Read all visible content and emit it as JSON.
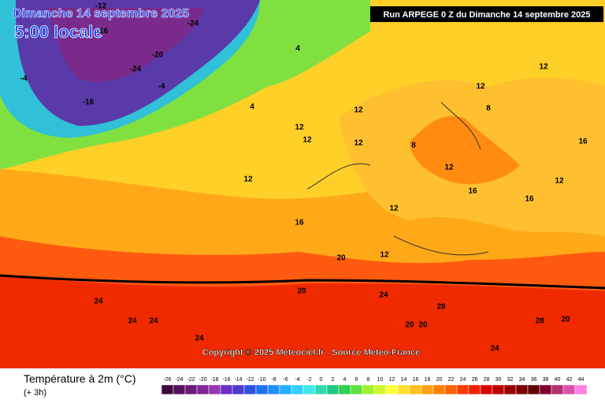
{
  "header": {
    "date_line": "Dimanche 14 septembre 2025",
    "time_line": "5:00 locale",
    "run_line": "Run ARPEGE 0 Z du Dimanche 14 septembre 2025"
  },
  "copyright": "Copyright © 2025 Meteociel.fr - Source Meteo-France",
  "legend": {
    "title": "Température à 2m (°C)",
    "subtitle": "(+ 3h)",
    "ticks": [
      -26,
      -24,
      -22,
      -20,
      -18,
      -16,
      -14,
      -12,
      -10,
      -8,
      -6,
      -4,
      -2,
      0,
      2,
      4,
      6,
      8,
      10,
      12,
      14,
      16,
      18,
      20,
      22,
      24,
      26,
      28,
      30,
      32,
      34,
      36,
      38,
      40,
      42,
      44
    ],
    "colors": [
      "#3d0a3d",
      "#55125a",
      "#6d1a7a",
      "#82289a",
      "#9636b4",
      "#6a2ec0",
      "#4a3ad0",
      "#3050e0",
      "#2070f0",
      "#2090ff",
      "#20b0ff",
      "#30d0ff",
      "#40e8e8",
      "#30d8b0",
      "#20c880",
      "#30d050",
      "#60e040",
      "#a0f030",
      "#d0f830",
      "#ffff40",
      "#ffe030",
      "#ffc020",
      "#ffa010",
      "#ff8000",
      "#ff6000",
      "#ff3a00",
      "#f01e00",
      "#d80000",
      "#b80000",
      "#980000",
      "#780000",
      "#600000",
      "#800030",
      "#b0306c",
      "#e050b0",
      "#ff80e0"
    ]
  },
  "map_labels": [
    -12,
    -16,
    -24,
    -16,
    -20,
    -24,
    -4,
    -4,
    4,
    4,
    12,
    12,
    12,
    12,
    12,
    16,
    20,
    20,
    24,
    24,
    24,
    24,
    24,
    20,
    20,
    24,
    28,
    20,
    12,
    12,
    16,
    16,
    12,
    16,
    12,
    12,
    8,
    12,
    28,
    8
  ]
}
